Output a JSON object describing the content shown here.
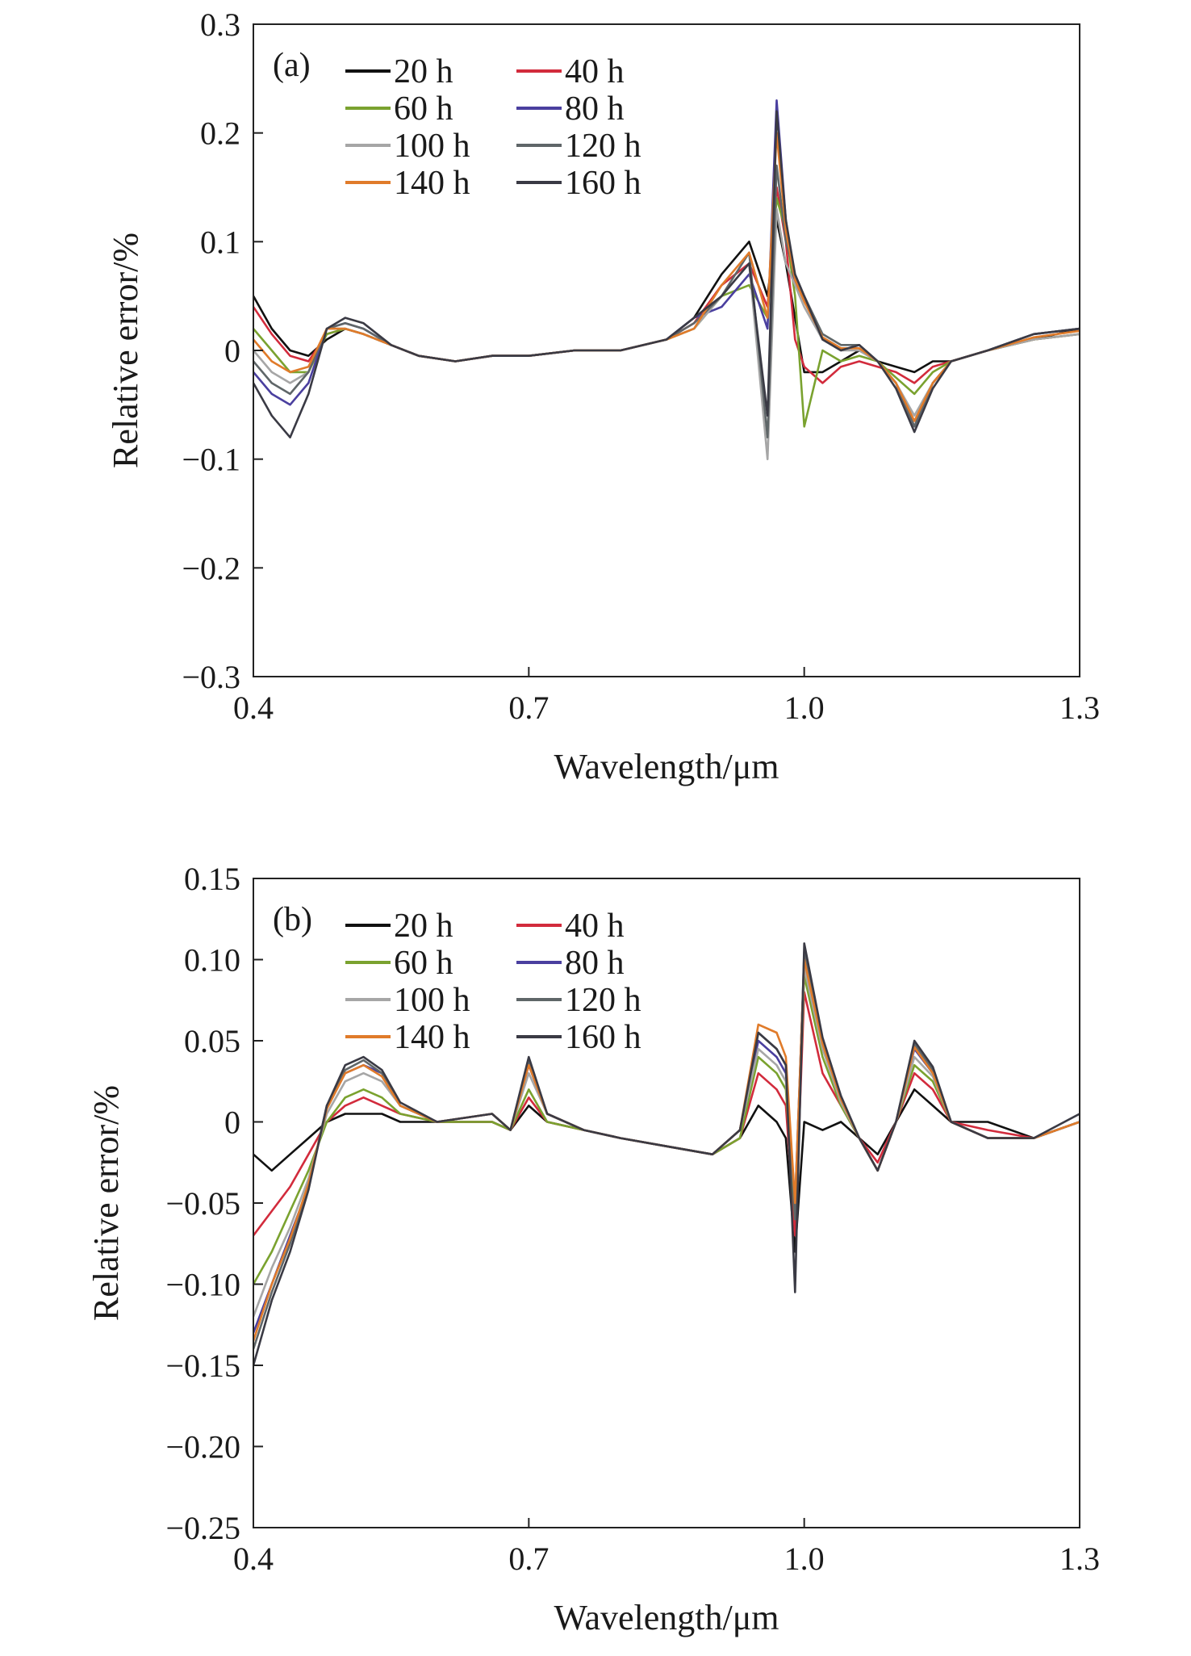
{
  "chart_data": [
    {
      "type": "line",
      "panel_label": "(a)",
      "xlabel": "Wavelength/μm",
      "ylabel": "Relative error/%",
      "xlim": [
        0.4,
        1.3
      ],
      "ylim": [
        -0.3,
        0.3
      ],
      "xticks": [
        "0.4",
        "0.7",
        "1.0",
        "1.3"
      ],
      "yticks": [
        "0.3",
        "0.2",
        "0.1",
        "0",
        "−0.1",
        "−0.2",
        "−0.3"
      ],
      "legend_placement": "top-left",
      "x": [
        0.4,
        0.42,
        0.44,
        0.46,
        0.48,
        0.5,
        0.52,
        0.55,
        0.58,
        0.62,
        0.66,
        0.7,
        0.75,
        0.8,
        0.85,
        0.88,
        0.91,
        0.94,
        0.96,
        0.97,
        0.98,
        0.99,
        1.0,
        1.02,
        1.04,
        1.06,
        1.08,
        1.1,
        1.12,
        1.14,
        1.16,
        1.2,
        1.25,
        1.3
      ],
      "series": [
        {
          "name": "20 h",
          "color": "#111111",
          "values": [
            0.05,
            0.02,
            0.0,
            -0.005,
            0.01,
            0.02,
            0.015,
            0.005,
            -0.005,
            -0.01,
            -0.005,
            -0.005,
            0.0,
            0.0,
            0.01,
            0.03,
            0.07,
            0.1,
            0.05,
            0.12,
            0.08,
            0.03,
            -0.02,
            -0.02,
            -0.01,
            0.0,
            -0.01,
            -0.015,
            -0.02,
            -0.01,
            -0.01,
            0.0,
            0.01,
            0.02
          ]
        },
        {
          "name": "40 h",
          "color": "#d22b3c",
          "values": [
            0.04,
            0.015,
            -0.005,
            -0.01,
            0.015,
            0.02,
            0.015,
            0.005,
            -0.005,
            -0.01,
            -0.005,
            -0.005,
            0.0,
            0.0,
            0.01,
            0.025,
            0.06,
            0.08,
            0.04,
            0.15,
            0.1,
            0.01,
            -0.015,
            -0.03,
            -0.015,
            -0.01,
            -0.015,
            -0.02,
            -0.03,
            -0.015,
            -0.01,
            0.0,
            0.01,
            0.015
          ]
        },
        {
          "name": "60 h",
          "color": "#7aa22f",
          "values": [
            0.02,
            0.0,
            -0.02,
            -0.02,
            0.015,
            0.02,
            0.015,
            0.005,
            -0.005,
            -0.01,
            -0.005,
            -0.005,
            0.0,
            0.0,
            0.01,
            0.02,
            0.05,
            0.06,
            0.03,
            0.14,
            0.11,
            0.05,
            -0.07,
            0.0,
            -0.01,
            -0.005,
            -0.01,
            -0.025,
            -0.04,
            -0.02,
            -0.01,
            0.0,
            0.01,
            0.015
          ]
        },
        {
          "name": "80 h",
          "color": "#4a3f9f",
          "values": [
            -0.02,
            -0.04,
            -0.05,
            -0.03,
            0.02,
            0.025,
            0.02,
            0.005,
            -0.005,
            -0.01,
            -0.005,
            -0.005,
            0.0,
            0.0,
            0.01,
            0.03,
            0.04,
            0.07,
            0.02,
            0.23,
            0.12,
            0.06,
            0.05,
            0.01,
            0.0,
            0.005,
            -0.01,
            -0.03,
            -0.07,
            -0.03,
            -0.01,
            0.0,
            0.015,
            0.02
          ]
        },
        {
          "name": "100 h",
          "color": "#a6a6a6",
          "values": [
            0.0,
            -0.02,
            -0.03,
            -0.02,
            0.02,
            0.02,
            0.015,
            0.005,
            -0.005,
            -0.01,
            -0.005,
            -0.005,
            0.0,
            0.0,
            0.01,
            0.02,
            0.05,
            0.08,
            -0.1,
            0.13,
            0.08,
            0.06,
            0.04,
            0.01,
            0.0,
            0.0,
            -0.01,
            -0.03,
            -0.06,
            -0.03,
            -0.01,
            0.0,
            0.01,
            0.015
          ]
        },
        {
          "name": "120 h",
          "color": "#5f6668",
          "values": [
            -0.01,
            -0.03,
            -0.04,
            -0.02,
            0.02,
            0.025,
            0.02,
            0.005,
            -0.005,
            -0.01,
            -0.005,
            -0.005,
            0.0,
            0.0,
            0.01,
            0.025,
            0.05,
            0.09,
            -0.08,
            0.17,
            0.1,
            0.07,
            0.05,
            0.015,
            0.005,
            0.005,
            -0.01,
            -0.03,
            -0.07,
            -0.03,
            -0.01,
            0.0,
            0.015,
            0.02
          ]
        },
        {
          "name": "140 h",
          "color": "#e07b2a",
          "values": [
            0.01,
            -0.01,
            -0.02,
            -0.015,
            0.02,
            0.02,
            0.015,
            0.005,
            -0.005,
            -0.01,
            -0.005,
            -0.005,
            0.0,
            0.0,
            0.01,
            0.02,
            0.06,
            0.09,
            0.03,
            0.2,
            0.11,
            0.065,
            0.045,
            0.012,
            0.002,
            0.002,
            -0.01,
            -0.03,
            -0.065,
            -0.03,
            -0.01,
            0.0,
            0.012,
            0.018
          ]
        },
        {
          "name": "160 h",
          "color": "#3a3a44",
          "values": [
            -0.03,
            -0.06,
            -0.08,
            -0.04,
            0.02,
            0.03,
            0.025,
            0.005,
            -0.005,
            -0.01,
            -0.005,
            -0.005,
            0.0,
            0.0,
            0.01,
            0.03,
            0.05,
            0.08,
            -0.06,
            0.22,
            0.12,
            0.07,
            0.05,
            0.01,
            0.0,
            0.005,
            -0.01,
            -0.035,
            -0.075,
            -0.035,
            -0.01,
            0.0,
            0.015,
            0.02
          ]
        }
      ]
    },
    {
      "type": "line",
      "panel_label": "(b)",
      "xlabel": "Wavelength/μm",
      "ylabel": "Relative error/%",
      "xlim": [
        0.4,
        1.3
      ],
      "ylim": [
        -0.25,
        0.15
      ],
      "xticks": [
        "0.4",
        "0.7",
        "1.0",
        "1.3"
      ],
      "yticks": [
        "0.15",
        "0.10",
        "0.05",
        "0",
        "−0.05",
        "−0.10",
        "−0.15",
        "−0.20",
        "−0.25"
      ],
      "legend_placement": "top-left",
      "x": [
        0.4,
        0.42,
        0.44,
        0.46,
        0.48,
        0.5,
        0.52,
        0.54,
        0.56,
        0.6,
        0.66,
        0.68,
        0.7,
        0.72,
        0.76,
        0.8,
        0.85,
        0.9,
        0.93,
        0.95,
        0.97,
        0.98,
        0.99,
        1.0,
        1.02,
        1.04,
        1.06,
        1.08,
        1.1,
        1.12,
        1.14,
        1.16,
        1.2,
        1.25,
        1.3
      ],
      "series": [
        {
          "name": "20 h",
          "color": "#111111",
          "values": [
            -0.02,
            -0.03,
            -0.02,
            -0.01,
            0.0,
            0.005,
            0.005,
            0.005,
            0.0,
            0.0,
            0.0,
            -0.005,
            0.01,
            0.0,
            -0.005,
            -0.01,
            -0.015,
            -0.02,
            -0.01,
            0.01,
            0.0,
            -0.01,
            -0.08,
            0.0,
            -0.005,
            0.0,
            -0.01,
            -0.02,
            0.0,
            0.02,
            0.01,
            0.0,
            0.0,
            -0.01,
            0.0
          ]
        },
        {
          "name": "40 h",
          "color": "#d22b3c",
          "values": [
            -0.07,
            -0.055,
            -0.04,
            -0.02,
            0.0,
            0.01,
            0.015,
            0.01,
            0.005,
            0.0,
            0.0,
            -0.005,
            0.015,
            0.0,
            -0.005,
            -0.01,
            -0.015,
            -0.02,
            -0.01,
            0.03,
            0.02,
            0.01,
            -0.07,
            0.08,
            0.03,
            0.01,
            -0.01,
            -0.025,
            0.0,
            0.03,
            0.02,
            0.0,
            -0.005,
            -0.01,
            0.0
          ]
        },
        {
          "name": "60 h",
          "color": "#7aa22f",
          "values": [
            -0.1,
            -0.08,
            -0.055,
            -0.03,
            0.0,
            0.015,
            0.02,
            0.015,
            0.005,
            0.0,
            0.0,
            -0.005,
            0.02,
            0.0,
            -0.005,
            -0.01,
            -0.015,
            -0.02,
            -0.01,
            0.04,
            0.03,
            0.02,
            -0.06,
            0.09,
            0.04,
            0.01,
            -0.01,
            -0.03,
            0.0,
            0.035,
            0.025,
            0.0,
            -0.01,
            -0.01,
            0.0
          ]
        },
        {
          "name": "80 h",
          "color": "#4a3f9f",
          "values": [
            -0.13,
            -0.1,
            -0.07,
            -0.04,
            0.01,
            0.03,
            0.035,
            0.03,
            0.01,
            0.0,
            0.005,
            -0.005,
            0.035,
            0.005,
            -0.005,
            -0.01,
            -0.015,
            -0.02,
            -0.005,
            0.05,
            0.04,
            0.03,
            -0.05,
            0.1,
            0.05,
            0.015,
            -0.01,
            -0.03,
            0.0,
            0.045,
            0.03,
            0.0,
            -0.01,
            -0.01,
            0.0
          ]
        },
        {
          "name": "100 h",
          "color": "#a6a6a6",
          "values": [
            -0.12,
            -0.09,
            -0.065,
            -0.035,
            0.005,
            0.025,
            0.03,
            0.025,
            0.01,
            0.0,
            0.005,
            -0.005,
            0.03,
            0.005,
            -0.005,
            -0.01,
            -0.015,
            -0.02,
            -0.005,
            0.045,
            0.035,
            0.025,
            -0.055,
            0.095,
            0.045,
            0.012,
            -0.01,
            -0.03,
            0.0,
            0.04,
            0.028,
            0.0,
            -0.01,
            -0.01,
            0.0
          ]
        },
        {
          "name": "120 h",
          "color": "#5f6668",
          "values": [
            -0.14,
            -0.105,
            -0.075,
            -0.04,
            0.01,
            0.032,
            0.038,
            0.03,
            0.01,
            0.0,
            0.005,
            -0.005,
            0.038,
            0.005,
            -0.005,
            -0.01,
            -0.015,
            -0.02,
            -0.005,
            0.055,
            0.045,
            0.035,
            -0.06,
            0.105,
            0.05,
            0.015,
            -0.01,
            -0.03,
            0.0,
            0.048,
            0.032,
            0.0,
            -0.01,
            -0.01,
            0.0
          ]
        },
        {
          "name": "140 h",
          "color": "#e07b2a",
          "values": [
            -0.135,
            -0.1,
            -0.072,
            -0.038,
            0.008,
            0.03,
            0.035,
            0.028,
            0.01,
            0.0,
            0.005,
            -0.005,
            0.035,
            0.005,
            -0.005,
            -0.01,
            -0.015,
            -0.02,
            -0.005,
            0.06,
            0.055,
            0.04,
            -0.05,
            0.1,
            0.048,
            0.014,
            -0.01,
            -0.03,
            0.0,
            0.046,
            0.03,
            0.0,
            -0.01,
            -0.01,
            0.0
          ]
        },
        {
          "name": "160 h",
          "color": "#3a3a44",
          "values": [
            -0.15,
            -0.11,
            -0.08,
            -0.042,
            0.01,
            0.035,
            0.04,
            0.032,
            0.012,
            0.0,
            0.005,
            -0.005,
            0.04,
            0.005,
            -0.005,
            -0.01,
            -0.015,
            -0.02,
            -0.005,
            0.055,
            0.045,
            0.035,
            -0.105,
            0.11,
            0.052,
            0.016,
            -0.01,
            -0.03,
            0.0,
            0.05,
            0.034,
            0.0,
            -0.01,
            -0.01,
            0.005
          ]
        }
      ]
    }
  ]
}
